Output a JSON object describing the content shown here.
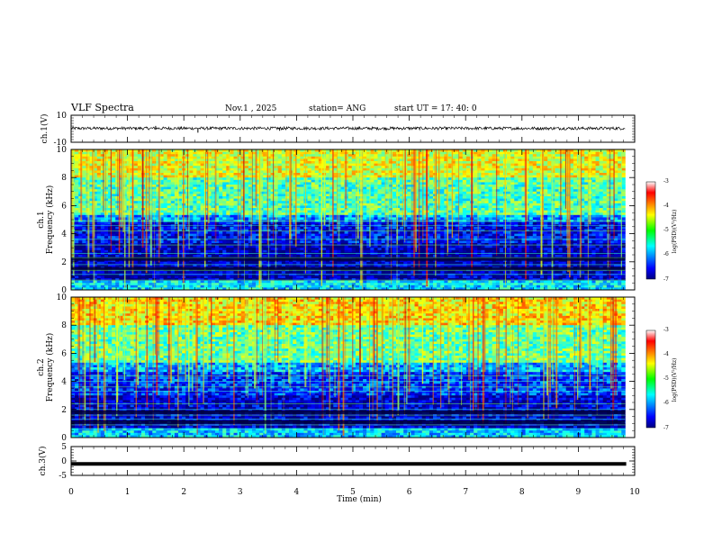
{
  "header": {
    "title": "VLF Spectra",
    "date": "Nov.1  , 2025",
    "station": "station= ANG",
    "start": "start  UT  =   17: 40: 0"
  },
  "chart_data": [
    {
      "type": "line",
      "name": "ch1-waveform",
      "ylabel": "ch.1(V)",
      "ylim": [
        -10,
        10
      ],
      "ytick_labels": [
        "10",
        "-10"
      ],
      "xlim": [
        0,
        10
      ],
      "baseline": 0.3,
      "noise_amplitude": 1.1,
      "spikes": [
        {
          "x": 1.5,
          "y": 2.1
        },
        {
          "x": 2.25,
          "y": -2.9
        },
        {
          "x": 3.7,
          "y": -1.5
        }
      ]
    },
    {
      "type": "heatmap",
      "name": "ch1-spectrogram",
      "ylabel": "ch.1",
      "ylabel2": "Frequency  (kHz)",
      "ylim": [
        0,
        10
      ],
      "ytick_labels": [
        "0",
        "2",
        "4",
        "6",
        "8",
        "10"
      ],
      "xlim": [
        0,
        10
      ],
      "data_end_min": 9.83,
      "colorbar": {
        "label": "log(PSD)(V²/Hz)",
        "range": [
          -7,
          -3
        ],
        "tick_labels": [
          "-3",
          "-4",
          "-5",
          "-6",
          "-7"
        ]
      },
      "bands_khz": [
        {
          "from": 8.0,
          "to": 10.0,
          "level": -4.6
        },
        {
          "from": 5.4,
          "to": 8.0,
          "level": -5.2
        },
        {
          "from": 4.8,
          "to": 5.4,
          "level": -5.9
        },
        {
          "from": 3.3,
          "to": 4.8,
          "level": -6.5
        },
        {
          "from": 0.6,
          "to": 3.3,
          "level": -6.8
        },
        {
          "from": 0.0,
          "to": 0.6,
          "level": -5.6
        }
      ],
      "lines_khz": [
        4.9,
        4.6,
        4.2,
        3.6,
        3.2,
        2.6,
        2.3,
        1.8,
        1.4,
        1.1,
        0.7,
        0.4
      ],
      "dark_bands_khz": [
        2.2,
        1.5
      ]
    },
    {
      "type": "heatmap",
      "name": "ch2-spectrogram",
      "ylabel": "ch.2",
      "ylabel2": "Frequency  (kHz)",
      "ylim": [
        0,
        10
      ],
      "ytick_labels": [
        "0",
        "2",
        "4",
        "6",
        "8",
        "10"
      ],
      "xlim": [
        0,
        10
      ],
      "data_end_min": 9.83,
      "colorbar": {
        "label": "log(PSD)(V²/Hz)",
        "range": [
          -7,
          -3
        ],
        "tick_labels": [
          "-3",
          "-4",
          "-5",
          "-6",
          "-7"
        ]
      },
      "bands_khz": [
        {
          "from": 8.0,
          "to": 10.0,
          "level": -4.4
        },
        {
          "from": 5.4,
          "to": 8.0,
          "level": -5.1
        },
        {
          "from": 4.6,
          "to": 5.4,
          "level": -5.8
        },
        {
          "from": 3.0,
          "to": 4.6,
          "level": -6.3
        },
        {
          "from": 0.6,
          "to": 3.0,
          "level": -6.7
        },
        {
          "from": 0.0,
          "to": 0.6,
          "level": -5.7
        }
      ],
      "lines_khz": [
        4.4,
        4.0,
        3.6,
        3.3,
        2.4,
        2.0,
        1.6,
        1.3,
        0.9,
        0.6
      ],
      "dark_bands_khz": [
        1.8,
        1.1
      ]
    },
    {
      "type": "line",
      "name": "ch3-waveform",
      "ylabel": "ch.3(V)",
      "ylim": [
        -5,
        5
      ],
      "ytick_labels": [
        "5",
        "0",
        "-5"
      ],
      "xlim": [
        0,
        10
      ],
      "baseline": -1.0,
      "noise_amplitude": 0.0
    }
  ],
  "xaxis": {
    "label": "Time  (min)",
    "tick_labels": [
      "0",
      "1",
      "2",
      "3",
      "4",
      "5",
      "6",
      "7",
      "8",
      "9",
      "10"
    ]
  }
}
